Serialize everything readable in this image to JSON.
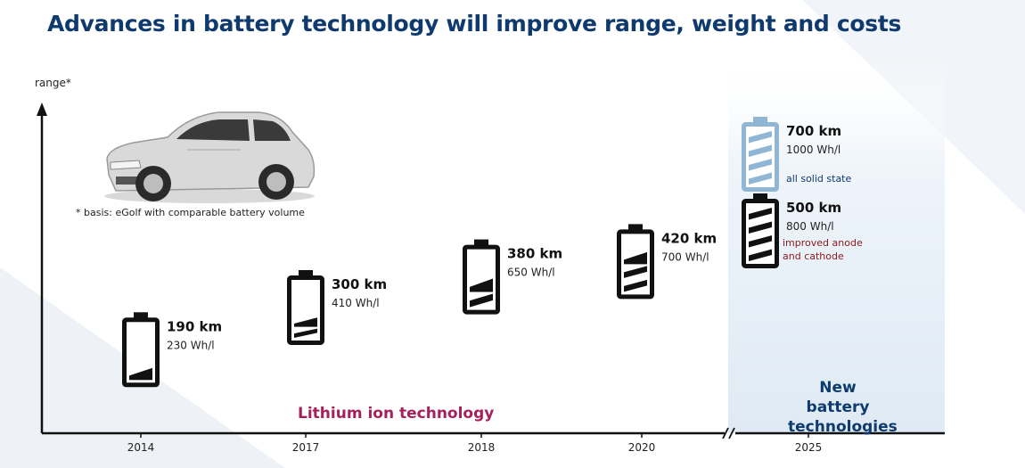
{
  "title": "Advances in battery technology will improve range, weight and costs",
  "chart_data": {
    "type": "bar",
    "ylabel": "range*",
    "footnote": "* basis: eGolf with comparable battery volume",
    "categories": [
      "2014",
      "2017",
      "2018",
      "2020",
      "2025",
      "2025"
    ],
    "points": [
      {
        "year": "2014",
        "range": "190 km",
        "density": "230 Wh/l",
        "range_km": 190,
        "fill": 0.25,
        "note": []
      },
      {
        "year": "2017",
        "range": "300 km",
        "density": "410 Wh/l",
        "range_km": 300,
        "fill": 0.4,
        "note": []
      },
      {
        "year": "2018",
        "range": "380 km",
        "density": "650 Wh/l",
        "range_km": 380,
        "fill": 0.55,
        "note": []
      },
      {
        "year": "2020",
        "range": "420 km",
        "density": "700 Wh/l",
        "range_km": 420,
        "fill": 0.75,
        "note": []
      },
      {
        "year": "2025",
        "range": "500 km",
        "density": "800 Wh/l",
        "range_km": 500,
        "fill": 1.0,
        "note": [
          "improved  anode",
          "and cathode"
        ]
      },
      {
        "year": "2025",
        "range": "700 km",
        "density": "1000 Wh/l",
        "range_km": 700,
        "fill": 1.0,
        "note": [
          "all solid state"
        ]
      }
    ],
    "tech_labels": {
      "lithium": "Lithium ion technology",
      "new": "New battery technologies"
    },
    "colors": {
      "battery": "#111111",
      "solid_state": "#8fb6d4",
      "lithium_label": "#a6215c",
      "new_label": "#0e3a6e",
      "note_red": "#8b1a1a"
    }
  }
}
